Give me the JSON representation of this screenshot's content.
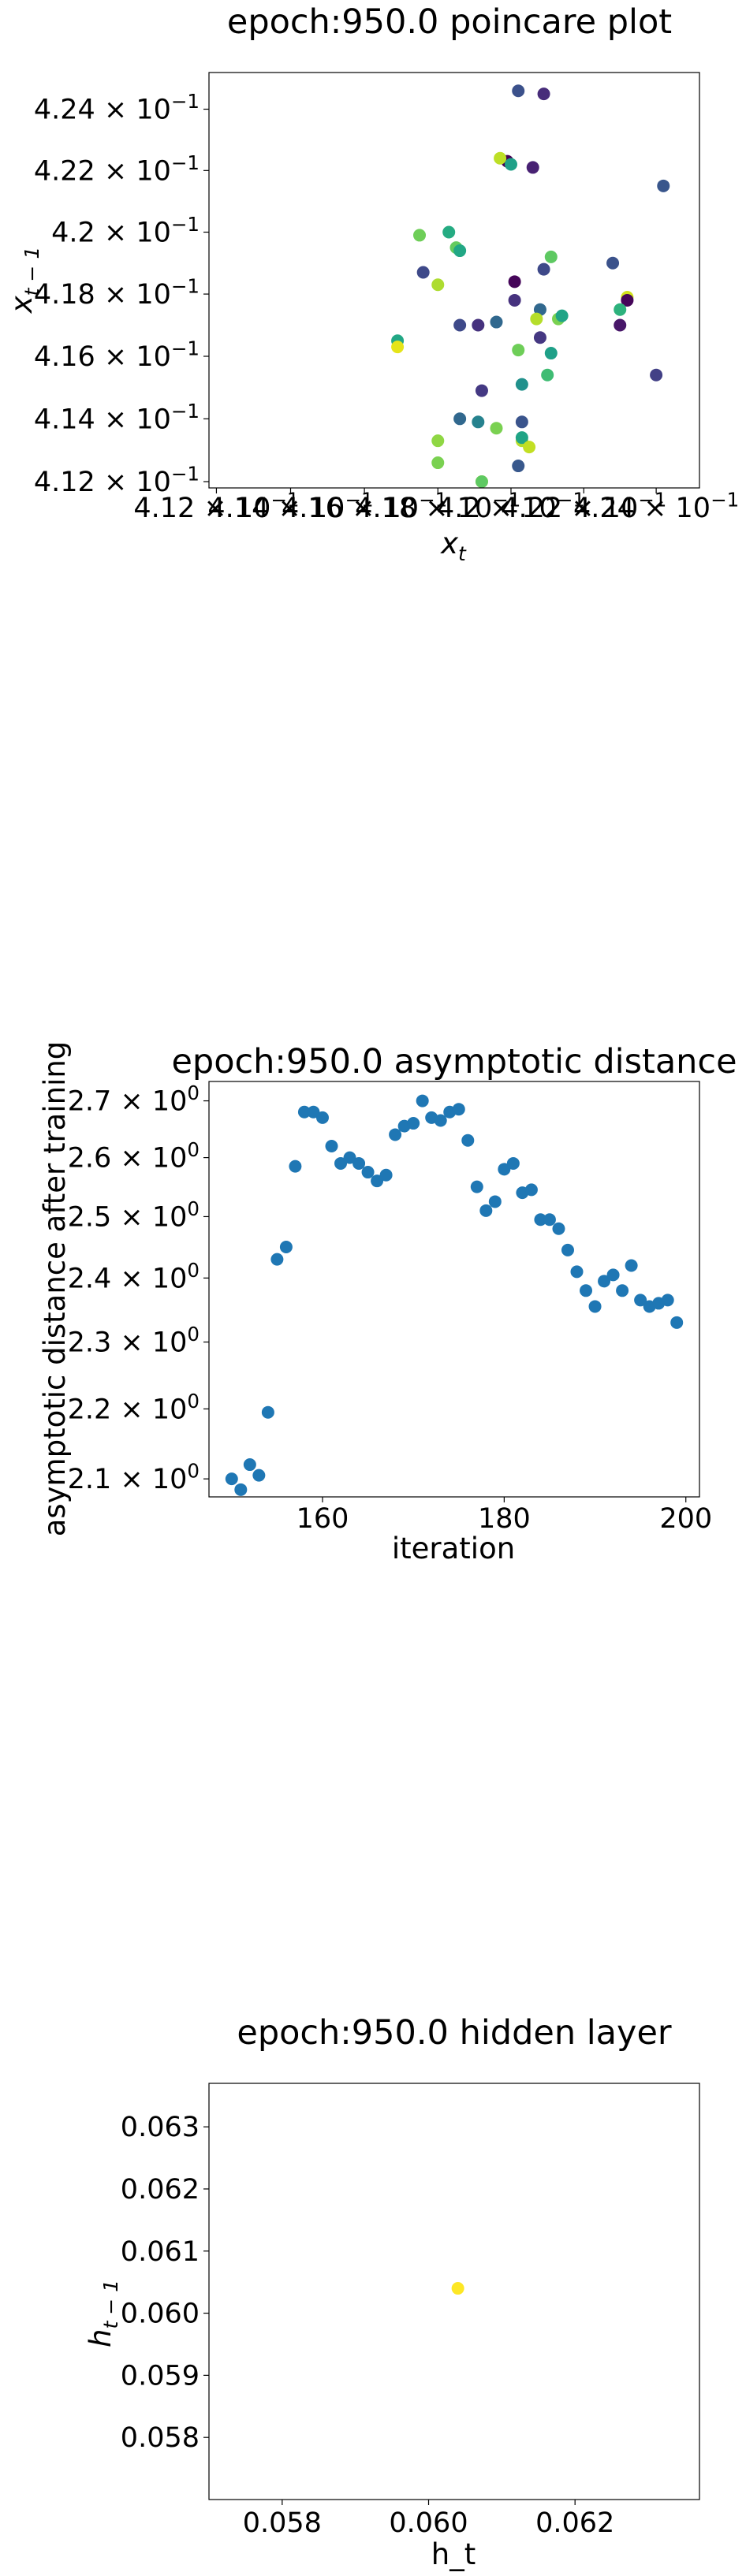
{
  "colors": {
    "scatter_blue": "#1f77b4",
    "hidden_yellow": "#fde725"
  },
  "chart_data": [
    {
      "type": "scatter",
      "title": "epoch:950.0 poincare plot",
      "xlabel": "x_t",
      "ylabel": "x_{t-1}",
      "xscale": "log",
      "yscale": "log",
      "xlim": [
        0.4118,
        0.4252
      ],
      "ylim": [
        0.4118,
        0.4252
      ],
      "x_tick_labels": [
        "4.12 × 10⁻¹",
        "4.14 × 10⁻¹",
        "4.16 × 10⁻¹",
        "4.18 × 10⁻¹",
        "4.2 × 10⁻¹",
        "4.22 × 10⁻¹",
        "4.24 × 10⁻¹"
      ],
      "y_tick_labels": [
        "4.12 × 10⁻¹",
        "4.14 × 10⁻¹",
        "4.16 × 10⁻¹",
        "4.18 × 10⁻¹",
        "4.2 × 10⁻¹",
        "4.22 × 10⁻¹",
        "4.24 × 10⁻¹"
      ],
      "points": [
        {
          "x": 0.4202,
          "y": 0.4246,
          "color": "#3b518b"
        },
        {
          "x": 0.4209,
          "y": 0.4245,
          "color": "#472c7a"
        },
        {
          "x": 0.4242,
          "y": 0.4215,
          "color": "#39568c"
        },
        {
          "x": 0.4199,
          "y": 0.4223,
          "color": "#440154"
        },
        {
          "x": 0.4197,
          "y": 0.4224,
          "color": "#bddf26"
        },
        {
          "x": 0.4206,
          "y": 0.4221,
          "color": "#482173"
        },
        {
          "x": 0.42,
          "y": 0.4222,
          "color": "#1fa088"
        },
        {
          "x": 0.4175,
          "y": 0.4199,
          "color": "#6ece58"
        },
        {
          "x": 0.4183,
          "y": 0.42,
          "color": "#25ab82"
        },
        {
          "x": 0.4185,
          "y": 0.4195,
          "color": "#65cb5e"
        },
        {
          "x": 0.4186,
          "y": 0.4194,
          "color": "#22a785"
        },
        {
          "x": 0.4176,
          "y": 0.4187,
          "color": "#3e4989"
        },
        {
          "x": 0.418,
          "y": 0.4183,
          "color": "#addc30"
        },
        {
          "x": 0.4201,
          "y": 0.4184,
          "color": "#450559"
        },
        {
          "x": 0.4209,
          "y": 0.4188,
          "color": "#3e4989"
        },
        {
          "x": 0.4211,
          "y": 0.4192,
          "color": "#5ec962"
        },
        {
          "x": 0.4228,
          "y": 0.419,
          "color": "#3b528b"
        },
        {
          "x": 0.4232,
          "y": 0.4179,
          "color": "#d0e11c"
        },
        {
          "x": 0.4232,
          "y": 0.4178,
          "color": "#450559"
        },
        {
          "x": 0.423,
          "y": 0.4175,
          "color": "#2db27d"
        },
        {
          "x": 0.423,
          "y": 0.417,
          "color": "#481769"
        },
        {
          "x": 0.4201,
          "y": 0.4178,
          "color": "#46327e"
        },
        {
          "x": 0.4208,
          "y": 0.4175,
          "color": "#31688e"
        },
        {
          "x": 0.4207,
          "y": 0.4172,
          "color": "#b5de2b"
        },
        {
          "x": 0.4213,
          "y": 0.4172,
          "color": "#7ad151"
        },
        {
          "x": 0.4214,
          "y": 0.4173,
          "color": "#20a486"
        },
        {
          "x": 0.4208,
          "y": 0.4166,
          "color": "#453882"
        },
        {
          "x": 0.4186,
          "y": 0.417,
          "color": "#3e4989"
        },
        {
          "x": 0.4191,
          "y": 0.417,
          "color": "#46327e"
        },
        {
          "x": 0.4196,
          "y": 0.4171,
          "color": "#31688e"
        },
        {
          "x": 0.4169,
          "y": 0.4165,
          "color": "#22a785"
        },
        {
          "x": 0.4169,
          "y": 0.4163,
          "color": "#e5e419"
        },
        {
          "x": 0.4202,
          "y": 0.4162,
          "color": "#6ece58"
        },
        {
          "x": 0.4211,
          "y": 0.4161,
          "color": "#1fa088"
        },
        {
          "x": 0.421,
          "y": 0.4154,
          "color": "#3fbc73"
        },
        {
          "x": 0.424,
          "y": 0.4154,
          "color": "#424086"
        },
        {
          "x": 0.4203,
          "y": 0.4151,
          "color": "#21918c"
        },
        {
          "x": 0.4192,
          "y": 0.4149,
          "color": "#443983"
        },
        {
          "x": 0.4186,
          "y": 0.414,
          "color": "#31688e"
        },
        {
          "x": 0.4191,
          "y": 0.4139,
          "color": "#26828e"
        },
        {
          "x": 0.4196,
          "y": 0.4137,
          "color": "#7ad151"
        },
        {
          "x": 0.4203,
          "y": 0.4139,
          "color": "#3a548c"
        },
        {
          "x": 0.418,
          "y": 0.4133,
          "color": "#8fd744"
        },
        {
          "x": 0.4203,
          "y": 0.4133,
          "color": "#b5de2b"
        },
        {
          "x": 0.4203,
          "y": 0.4134,
          "color": "#20a486"
        },
        {
          "x": 0.4205,
          "y": 0.4131,
          "color": "#c2df23"
        },
        {
          "x": 0.418,
          "y": 0.4126,
          "color": "#7ad151"
        },
        {
          "x": 0.4202,
          "y": 0.4125,
          "color": "#38588c"
        },
        {
          "x": 0.4192,
          "y": 0.412,
          "color": "#fde725"
        },
        {
          "x": 0.4192,
          "y": 0.412,
          "color": "#5ec962"
        }
      ]
    },
    {
      "type": "scatter",
      "title": "epoch:950.0 asymptotic distance",
      "xlabel": "iteration",
      "ylabel": "asymptotic distance after training",
      "yscale": "log",
      "xlim": [
        147.5,
        201.5
      ],
      "ylim": [
        2.075,
        2.735
      ],
      "x_ticks": [
        160,
        180,
        200
      ],
      "x_tick_labels": [
        "160",
        "180",
        "200"
      ],
      "y_tick_labels": [
        "2.1 × 10⁰",
        "2.2 × 10⁰",
        "2.3 × 10⁰",
        "2.4 × 10⁰",
        "2.5 × 10⁰",
        "2.6 × 10⁰",
        "2.7 × 10⁰"
      ],
      "x": [
        150,
        151,
        152,
        153,
        154,
        155,
        156,
        157,
        158,
        159,
        160,
        161,
        162,
        163,
        164,
        165,
        166,
        167,
        168,
        169,
        170,
        171,
        172,
        173,
        174,
        175,
        176,
        177,
        178,
        179,
        180,
        181,
        182,
        183,
        184,
        185,
        186,
        187,
        188,
        189,
        190,
        191,
        192,
        193,
        194,
        195,
        196,
        197,
        198,
        199
      ],
      "y": [
        2.1,
        2.085,
        2.12,
        2.105,
        2.195,
        2.43,
        2.45,
        2.585,
        2.68,
        2.68,
        2.67,
        2.62,
        2.59,
        2.6,
        2.59,
        2.575,
        2.56,
        2.57,
        2.64,
        2.655,
        2.66,
        2.7,
        2.67,
        2.665,
        2.68,
        2.685,
        2.63,
        2.55,
        2.51,
        2.525,
        2.58,
        2.59,
        2.54,
        2.545,
        2.495,
        2.495,
        2.48,
        2.445,
        2.41,
        2.38,
        2.355,
        2.395,
        2.405,
        2.38,
        2.42,
        2.365,
        2.355,
        2.36,
        2.365,
        2.33
      ]
    },
    {
      "type": "scatter",
      "title": "epoch:950.0 hidden layer",
      "xlabel": "h_t",
      "ylabel": "h_{t-1}",
      "xlim": [
        0.057,
        0.0637
      ],
      "ylim": [
        0.057,
        0.0637
      ],
      "x_ticks": [
        0.058,
        0.06,
        0.062
      ],
      "y_ticks": [
        0.058,
        0.059,
        0.06,
        0.061,
        0.062,
        0.063
      ],
      "x_tick_labels": [
        "0.058",
        "0.060",
        "0.062"
      ],
      "y_tick_labels": [
        "0.058",
        "0.059",
        "0.060",
        "0.061",
        "0.062",
        "0.063"
      ],
      "points": [
        {
          "x": 0.0604,
          "y": 0.0604,
          "color": "#fde725"
        }
      ]
    }
  ]
}
